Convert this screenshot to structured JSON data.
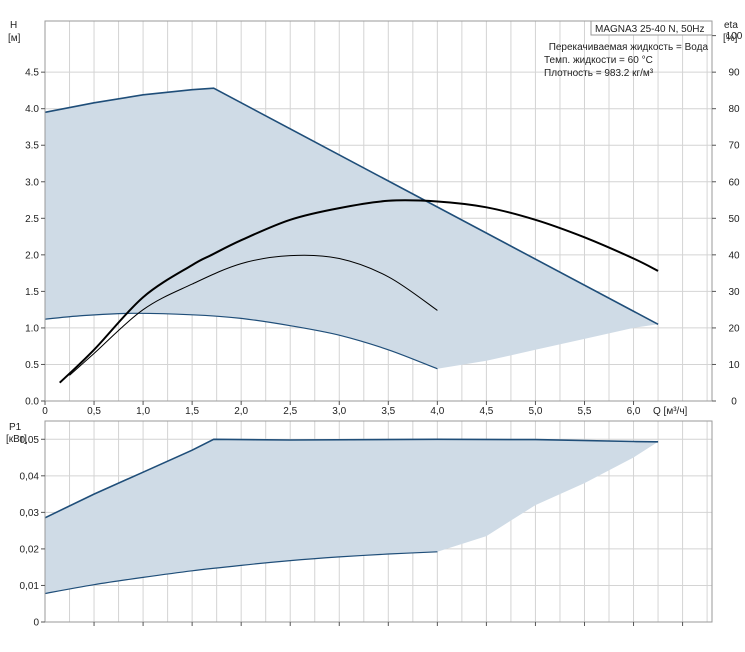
{
  "chart_data": [
    {
      "type": "line",
      "legend_box": {
        "title": "MAGNA3 25-40 N, 50Hz",
        "lines": [
          "Перекачиваемая жидкость = Вода",
          "Темп. жидкости = 60 °C",
          "Плотность = 983.2 кг/м³"
        ]
      },
      "ylabel": [
        "H",
        "[м]"
      ],
      "y2label": [
        "eta",
        "[%]"
      ],
      "xlabel": "Q [м³/ч]",
      "xlim": [
        0,
        6.8
      ],
      "ylim": [
        0,
        5.2
      ],
      "y2lim": [
        0,
        104
      ],
      "xticks": [
        "0",
        "0,5",
        "1,0",
        "1,5",
        "2,0",
        "2,5",
        "3,0",
        "3,5",
        "4,0",
        "4,5",
        "5,0",
        "5,5",
        "6,0"
      ],
      "yticks": [
        "0.0",
        "0.5",
        "1.0",
        "1.5",
        "2.0",
        "2.5",
        "3.0",
        "3.5",
        "4.0",
        "4.5"
      ],
      "y2ticks": [
        "0",
        "10",
        "20",
        "30",
        "40",
        "50",
        "60",
        "70",
        "80",
        "90",
        "100"
      ],
      "grid": true,
      "operating_area": {
        "fill": "#cfdbe6",
        "edge_color": "#1f4e79",
        "max_curve": [
          [
            0,
            3.95
          ],
          [
            0.5,
            4.08
          ],
          [
            1.0,
            4.19
          ],
          [
            1.5,
            4.26
          ],
          [
            1.72,
            4.28
          ],
          [
            6.25,
            1.05
          ]
        ],
        "min_curve": [
          [
            0,
            1.12
          ],
          [
            0.4,
            1.17
          ],
          [
            0.9,
            1.2
          ],
          [
            1.5,
            1.18
          ],
          [
            2.0,
            1.13
          ],
          [
            2.5,
            1.03
          ],
          [
            3.0,
            0.9
          ],
          [
            3.5,
            0.7
          ],
          [
            4.0,
            0.44
          ]
        ],
        "closing_edge": [
          [
            4.0,
            0.44
          ],
          [
            4.5,
            0.55
          ],
          [
            5.0,
            0.7
          ],
          [
            5.5,
            0.85
          ],
          [
            6.0,
            1.0
          ],
          [
            6.25,
            1.05
          ]
        ]
      },
      "series": [
        {
          "color": "#000000",
          "width": 2,
          "points": [
            [
              0.15,
              0.25
            ],
            [
              0.5,
              0.7
            ],
            [
              1.0,
              1.42
            ],
            [
              1.5,
              1.86
            ],
            [
              1.7,
              2.0
            ],
            [
              2.0,
              2.2
            ],
            [
              2.5,
              2.48
            ],
            [
              3.0,
              2.64
            ],
            [
              3.5,
              2.74
            ],
            [
              4.0,
              2.73
            ],
            [
              4.5,
              2.65
            ],
            [
              5.0,
              2.48
            ],
            [
              5.5,
              2.24
            ],
            [
              6.0,
              1.95
            ],
            [
              6.25,
              1.78
            ]
          ]
        },
        {
          "color": "#000000",
          "width": 1,
          "points": [
            [
              0.25,
              0.35
            ],
            [
              0.5,
              0.65
            ],
            [
              1.0,
              1.25
            ],
            [
              1.5,
              1.6
            ],
            [
              2.0,
              1.88
            ],
            [
              2.5,
              1.99
            ],
            [
              3.0,
              1.95
            ],
            [
              3.5,
              1.7
            ],
            [
              4.0,
              1.24
            ]
          ]
        }
      ]
    },
    {
      "type": "area",
      "ylabel": [
        "P1",
        "[кВт]"
      ],
      "xlim": [
        0,
        6.8
      ],
      "ylim": [
        0,
        0.055
      ],
      "yticks": [
        "0",
        "0,01",
        "0,02",
        "0,03",
        "0,04",
        "0,05"
      ],
      "grid": true,
      "operating_area": {
        "fill": "#cfdbe6",
        "edge_color": "#1f4e79",
        "max_curve": [
          [
            0,
            0.0285
          ],
          [
            0.5,
            0.035
          ],
          [
            1.0,
            0.041
          ],
          [
            1.5,
            0.047
          ],
          [
            1.72,
            0.05
          ],
          [
            2.5,
            0.0498
          ],
          [
            4.0,
            0.05
          ],
          [
            5.0,
            0.0499
          ],
          [
            6.0,
            0.0494
          ],
          [
            6.25,
            0.0493
          ]
        ],
        "min_curve": [
          [
            0,
            0.0078
          ],
          [
            0.5,
            0.0102
          ],
          [
            1.0,
            0.0122
          ],
          [
            1.5,
            0.014
          ],
          [
            2.0,
            0.0155
          ],
          [
            2.5,
            0.0168
          ],
          [
            3.0,
            0.0178
          ],
          [
            3.5,
            0.0186
          ],
          [
            4.0,
            0.0192
          ]
        ],
        "closing_edge": [
          [
            4.0,
            0.0192
          ],
          [
            4.5,
            0.0235
          ],
          [
            5.0,
            0.032
          ],
          [
            5.5,
            0.038
          ],
          [
            6.0,
            0.045
          ],
          [
            6.25,
            0.0493
          ]
        ]
      }
    }
  ]
}
